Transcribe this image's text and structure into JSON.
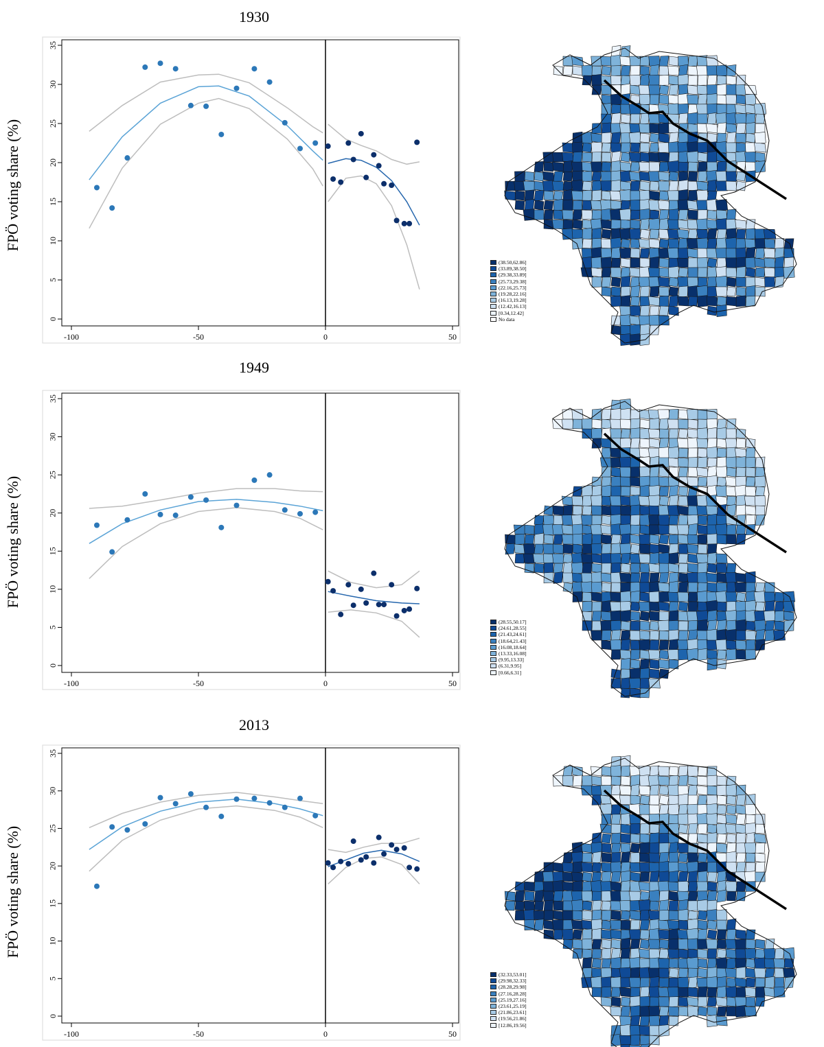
{
  "ylabel": "FPÖ voting share (%)",
  "colors": {
    "left_points": "#2c78b8",
    "right_points": "#0c2f6b",
    "left_fit": "#5aa3d6",
    "right_fit": "#2566ad",
    "ci": "#bdbdbd",
    "axis": "#000000"
  },
  "chart_data": [
    {
      "type": "scatter",
      "title": "1930",
      "xlabel": "",
      "ylabel": "FPÖ voting share (%)",
      "xlim": [
        -102,
        53
      ],
      "ylim": [
        -1,
        36
      ],
      "xticks": [
        -100,
        -50,
        0,
        50
      ],
      "yticks": [
        0,
        5,
        10,
        15,
        20,
        25,
        30,
        35
      ],
      "cutoff": 0,
      "left_points": [
        [
          -90,
          16.8
        ],
        [
          -84,
          14.2
        ],
        [
          -78,
          20.6
        ],
        [
          -71,
          32.2
        ],
        [
          -65,
          32.7
        ],
        [
          -59,
          32.0
        ],
        [
          -53,
          27.3
        ],
        [
          -47,
          27.2
        ],
        [
          -41,
          23.6
        ],
        [
          -35,
          29.5
        ],
        [
          -28,
          32.0
        ],
        [
          -22,
          30.3
        ],
        [
          -16,
          25.1
        ],
        [
          -10,
          21.8
        ],
        [
          -4,
          22.5
        ]
      ],
      "right_points": [
        [
          1,
          22.1
        ],
        [
          3,
          17.9
        ],
        [
          6,
          17.5
        ],
        [
          9,
          22.5
        ],
        [
          11,
          20.4
        ],
        [
          14,
          23.7
        ],
        [
          16,
          18.1
        ],
        [
          19,
          21.0
        ],
        [
          21,
          19.6
        ],
        [
          23,
          17.3
        ],
        [
          26,
          17.1
        ],
        [
          28,
          12.6
        ],
        [
          31,
          12.2
        ],
        [
          33,
          12.2
        ],
        [
          36,
          22.6
        ]
      ],
      "left_fit": [
        [
          -93,
          17.8
        ],
        [
          -80,
          23.3
        ],
        [
          -65,
          27.6
        ],
        [
          -50,
          29.7
        ],
        [
          -42,
          29.8
        ],
        [
          -30,
          28.5
        ],
        [
          -15,
          24.7
        ],
        [
          -5,
          21.5
        ],
        [
          -1,
          20.3
        ]
      ],
      "left_lo": [
        [
          -93,
          11.6
        ],
        [
          -80,
          19.3
        ],
        [
          -65,
          24.9
        ],
        [
          -50,
          27.6
        ],
        [
          -42,
          28.2
        ],
        [
          -30,
          26.9
        ],
        [
          -15,
          23.0
        ],
        [
          -5,
          19.2
        ],
        [
          -1,
          17.0
        ]
      ],
      "left_hi": [
        [
          -93,
          24.0
        ],
        [
          -80,
          27.3
        ],
        [
          -65,
          30.3
        ],
        [
          -50,
          31.2
        ],
        [
          -42,
          31.3
        ],
        [
          -30,
          30.2
        ],
        [
          -15,
          27.0
        ],
        [
          -5,
          24.6
        ],
        [
          -1,
          23.8
        ]
      ],
      "right_fit": [
        [
          1,
          19.9
        ],
        [
          8,
          20.5
        ],
        [
          14,
          20.3
        ],
        [
          20,
          19.4
        ],
        [
          26,
          17.7
        ],
        [
          32,
          15.0
        ],
        [
          37,
          12.0
        ]
      ],
      "right_lo": [
        [
          1,
          15.0
        ],
        [
          8,
          18.0
        ],
        [
          14,
          18.3
        ],
        [
          20,
          17.3
        ],
        [
          26,
          14.5
        ],
        [
          32,
          9.5
        ],
        [
          37,
          3.8
        ]
      ],
      "right_hi": [
        [
          1,
          24.9
        ],
        [
          8,
          23.0
        ],
        [
          14,
          22.2
        ],
        [
          20,
          21.5
        ],
        [
          26,
          20.4
        ],
        [
          32,
          19.8
        ],
        [
          37,
          20.1
        ]
      ],
      "legend": [
        "(38.50,62.86]",
        "(33.89,38.50]",
        "(29.38,33.89]",
        "(25.73,29.38]",
        "(22.16,25.73]",
        "(19.28,22.16]",
        "(16.13,19.28]",
        "(12.42,16.13]",
        "[0.34,12.42]",
        "No data"
      ]
    },
    {
      "type": "scatter",
      "title": "1949",
      "xlabel": "",
      "ylabel": "FPÖ voting share (%)",
      "xlim": [
        -102,
        53
      ],
      "ylim": [
        -1,
        36
      ],
      "xticks": [
        -100,
        -50,
        0,
        50
      ],
      "yticks": [
        0,
        5,
        10,
        15,
        20,
        25,
        30,
        35
      ],
      "cutoff": 0,
      "left_points": [
        [
          -90,
          18.4
        ],
        [
          -84,
          14.9
        ],
        [
          -78,
          19.1
        ],
        [
          -71,
          22.5
        ],
        [
          -65,
          19.8
        ],
        [
          -59,
          19.7
        ],
        [
          -53,
          22.1
        ],
        [
          -47,
          21.7
        ],
        [
          -41,
          18.1
        ],
        [
          -35,
          21.0
        ],
        [
          -28,
          24.3
        ],
        [
          -22,
          25.0
        ],
        [
          -16,
          20.4
        ],
        [
          -10,
          19.9
        ],
        [
          -4,
          20.1
        ]
      ],
      "right_points": [
        [
          1,
          11.0
        ],
        [
          3,
          9.8
        ],
        [
          6,
          6.7
        ],
        [
          9,
          10.6
        ],
        [
          11,
          7.9
        ],
        [
          14,
          10.0
        ],
        [
          16,
          8.2
        ],
        [
          19,
          12.1
        ],
        [
          21,
          8.0
        ],
        [
          23,
          8.0
        ],
        [
          26,
          10.6
        ],
        [
          28,
          6.5
        ],
        [
          31,
          7.2
        ],
        [
          33,
          7.4
        ],
        [
          36,
          10.1
        ]
      ],
      "left_fit": [
        [
          -93,
          16.0
        ],
        [
          -80,
          18.6
        ],
        [
          -65,
          20.4
        ],
        [
          -50,
          21.5
        ],
        [
          -35,
          21.8
        ],
        [
          -20,
          21.4
        ],
        [
          -10,
          20.9
        ],
        [
          -1,
          20.3
        ]
      ],
      "left_lo": [
        [
          -93,
          11.4
        ],
        [
          -80,
          15.6
        ],
        [
          -65,
          18.6
        ],
        [
          -50,
          20.2
        ],
        [
          -35,
          20.7
        ],
        [
          -20,
          20.2
        ],
        [
          -10,
          19.3
        ],
        [
          -1,
          17.8
        ]
      ],
      "left_hi": [
        [
          -93,
          20.6
        ],
        [
          -80,
          20.9
        ],
        [
          -65,
          21.7
        ],
        [
          -50,
          22.6
        ],
        [
          -35,
          23.2
        ],
        [
          -20,
          23.2
        ],
        [
          -10,
          22.9
        ],
        [
          -1,
          22.8
        ]
      ],
      "right_fit": [
        [
          1,
          9.7
        ],
        [
          10,
          9.1
        ],
        [
          20,
          8.5
        ],
        [
          30,
          8.2
        ],
        [
          37,
          8.1
        ]
      ],
      "right_lo": [
        [
          1,
          7.0
        ],
        [
          10,
          7.3
        ],
        [
          20,
          6.9
        ],
        [
          30,
          5.8
        ],
        [
          37,
          3.7
        ]
      ],
      "right_hi": [
        [
          1,
          12.4
        ],
        [
          10,
          10.9
        ],
        [
          20,
          10.2
        ],
        [
          30,
          10.6
        ],
        [
          37,
          12.4
        ]
      ],
      "legend": [
        "(28.55,50.17]",
        "(24.61,28.55]",
        "(21.43,24.61]",
        "(18.64,21.43]",
        "(16.08,18.64]",
        "(13.33,16.08]",
        "(9.95,13.33]",
        "(6.31,9.95]",
        "[0.66,6.31]"
      ]
    },
    {
      "type": "scatter",
      "title": "2013",
      "xlabel": "",
      "ylabel": "FPÖ voting share (%)",
      "xlim": [
        -102,
        53
      ],
      "ylim": [
        -1,
        36
      ],
      "xticks": [
        -100,
        -50,
        0,
        50
      ],
      "yticks": [
        0,
        5,
        10,
        15,
        20,
        25,
        30,
        35
      ],
      "cutoff": 0,
      "left_points": [
        [
          -90,
          17.3
        ],
        [
          -84,
          25.2
        ],
        [
          -78,
          24.8
        ],
        [
          -71,
          25.6
        ],
        [
          -65,
          29.1
        ],
        [
          -59,
          28.3
        ],
        [
          -53,
          29.6
        ],
        [
          -47,
          27.8
        ],
        [
          -41,
          26.6
        ],
        [
          -35,
          28.9
        ],
        [
          -28,
          29.0
        ],
        [
          -22,
          28.4
        ],
        [
          -16,
          27.8
        ],
        [
          -10,
          29.0
        ],
        [
          -4,
          26.7
        ]
      ],
      "right_points": [
        [
          1,
          20.4
        ],
        [
          3,
          19.8
        ],
        [
          6,
          20.6
        ],
        [
          9,
          20.3
        ],
        [
          11,
          23.3
        ],
        [
          14,
          20.8
        ],
        [
          16,
          21.2
        ],
        [
          19,
          20.4
        ],
        [
          21,
          23.8
        ],
        [
          23,
          21.6
        ],
        [
          26,
          22.8
        ],
        [
          28,
          22.2
        ],
        [
          31,
          22.4
        ],
        [
          33,
          19.8
        ],
        [
          36,
          19.6
        ]
      ],
      "left_fit": [
        [
          -93,
          22.2
        ],
        [
          -80,
          25.2
        ],
        [
          -65,
          27.3
        ],
        [
          -50,
          28.5
        ],
        [
          -35,
          28.9
        ],
        [
          -20,
          28.3
        ],
        [
          -10,
          27.6
        ],
        [
          -1,
          26.7
        ]
      ],
      "left_lo": [
        [
          -93,
          19.3
        ],
        [
          -80,
          23.4
        ],
        [
          -65,
          26.1
        ],
        [
          -50,
          27.6
        ],
        [
          -35,
          28.0
        ],
        [
          -20,
          27.4
        ],
        [
          -10,
          26.5
        ],
        [
          -1,
          25.1
        ]
      ],
      "left_hi": [
        [
          -93,
          25.1
        ],
        [
          -80,
          27.0
        ],
        [
          -65,
          28.5
        ],
        [
          -50,
          29.4
        ],
        [
          -35,
          29.8
        ],
        [
          -20,
          29.2
        ],
        [
          -10,
          28.7
        ],
        [
          -1,
          28.3
        ]
      ],
      "right_fit": [
        [
          1,
          19.9
        ],
        [
          8,
          20.8
        ],
        [
          15,
          21.7
        ],
        [
          22,
          22.1
        ],
        [
          30,
          21.6
        ],
        [
          37,
          20.6
        ]
      ],
      "right_lo": [
        [
          1,
          17.6
        ],
        [
          8,
          19.8
        ],
        [
          15,
          21.0
        ],
        [
          22,
          21.2
        ],
        [
          30,
          20.2
        ],
        [
          37,
          17.6
        ]
      ],
      "right_hi": [
        [
          1,
          22.2
        ],
        [
          8,
          21.8
        ],
        [
          15,
          22.5
        ],
        [
          22,
          23.0
        ],
        [
          30,
          23.0
        ],
        [
          37,
          23.7
        ]
      ],
      "legend": [
        "(32.33,53.01]",
        "(29.98,32.33]",
        "(28.28,29.98]",
        "(27.16,28.28]",
        "(25.19,27.16]",
        "(23.61,25.19]",
        "(21.86,23.61]",
        "(19.56,21.86]",
        "[12.86,19.56]"
      ]
    }
  ]
}
